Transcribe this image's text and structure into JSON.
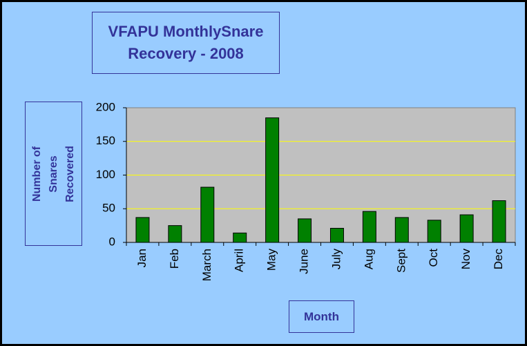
{
  "chart_data": {
    "type": "bar",
    "title": "VFAPU MonthlySnare Recovery - 2008",
    "x_label": "Month",
    "y_label": "Number of Snares Recovered",
    "categories": [
      "Jan",
      "Feb",
      "March",
      "April",
      "May",
      "June",
      "July",
      "Aug",
      "Sept",
      "Oct",
      "Nov",
      "Dec"
    ],
    "values": [
      37,
      25,
      82,
      14,
      185,
      35,
      21,
      46,
      37,
      33,
      41,
      62
    ],
    "color": "#008000",
    "ylim": [
      0,
      200
    ],
    "yticks": [
      0,
      50,
      100,
      150,
      200
    ],
    "grid": true,
    "grid_color": "#ffff00",
    "plot_background": "#c0c0c0"
  }
}
